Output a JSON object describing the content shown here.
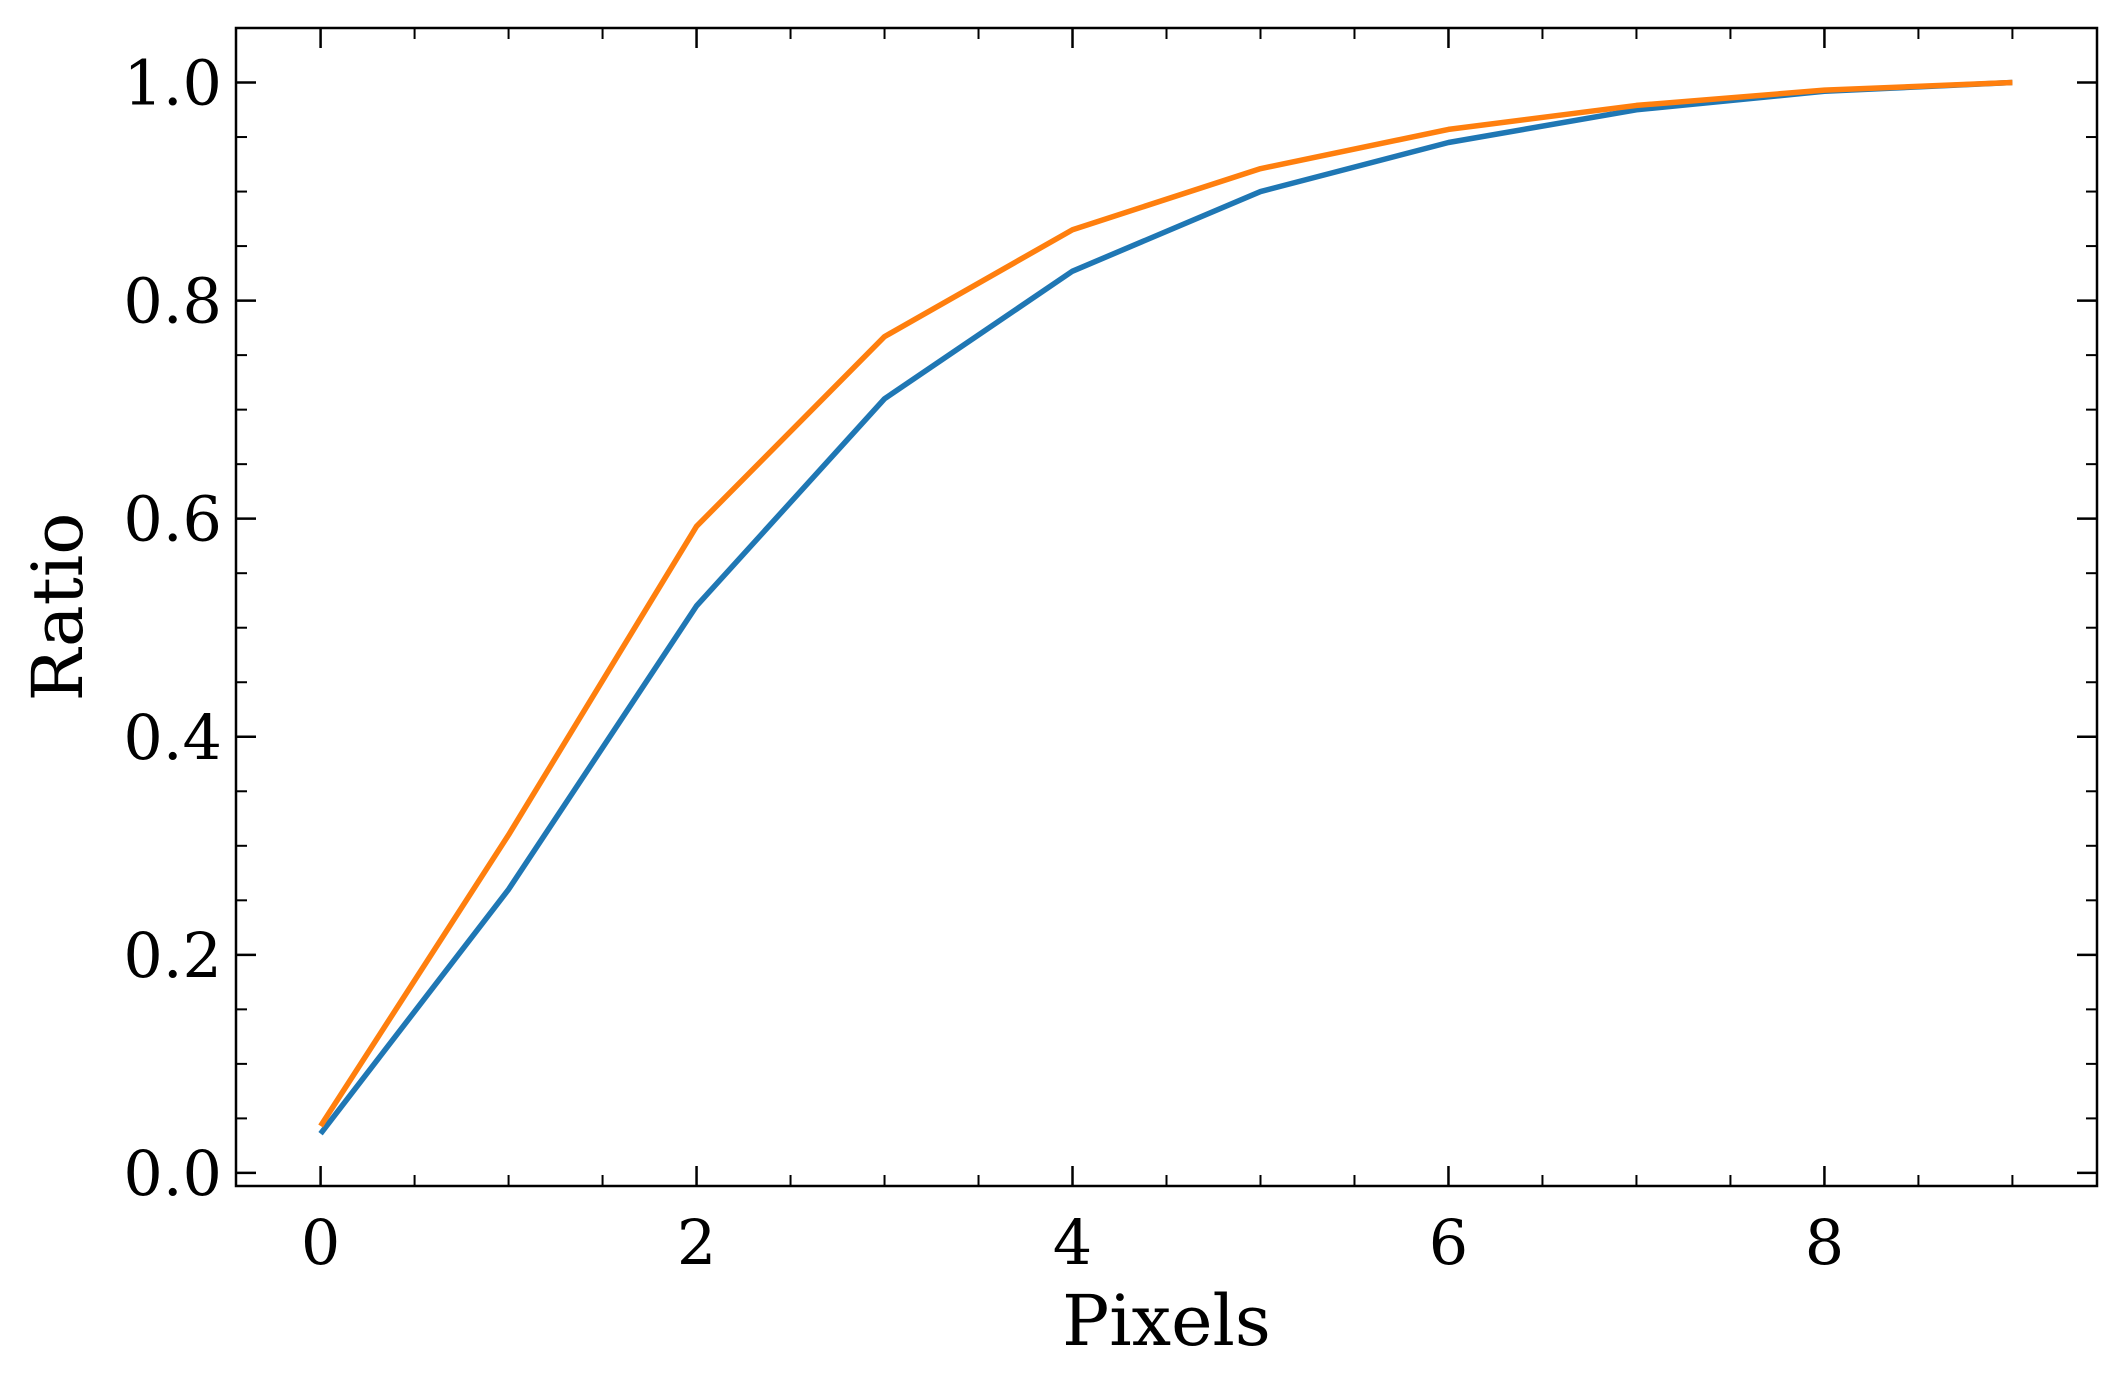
{
  "chart_data": {
    "type": "line",
    "title": "",
    "xlabel": "Pixels",
    "ylabel": "Ratio",
    "xlim": [
      -0.45,
      9.45
    ],
    "ylim": [
      -0.012,
      1.05
    ],
    "xticks": [
      0,
      2,
      4,
      6,
      8
    ],
    "xtick_labels": [
      "0",
      "2",
      "4",
      "6",
      "8"
    ],
    "xminor_step": 0.5,
    "yticks": [
      0.0,
      0.2,
      0.4,
      0.6,
      0.8,
      1.0
    ],
    "ytick_labels": [
      "0.0",
      "0.2",
      "0.4",
      "0.6",
      "0.8",
      "1.0"
    ],
    "yminor_step": 0.05,
    "ticks_direction": "in",
    "ticks_on_all_sides": true,
    "grid": false,
    "legend": "none",
    "x": [
      0,
      1,
      2,
      3,
      4,
      5,
      6,
      7,
      8,
      9
    ],
    "series": [
      {
        "color": "#1f77b4",
        "values": [
          0.036,
          0.26,
          0.52,
          0.71,
          0.827,
          0.9,
          0.945,
          0.975,
          0.992,
          1.0
        ]
      },
      {
        "color": "#ff7f0e",
        "values": [
          0.043,
          0.31,
          0.593,
          0.767,
          0.865,
          0.921,
          0.957,
          0.979,
          0.993,
          1.0
        ]
      }
    ]
  }
}
